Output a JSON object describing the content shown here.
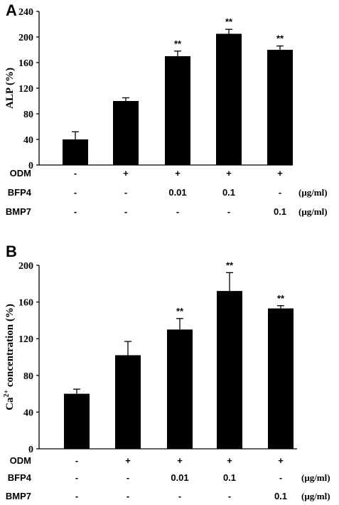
{
  "chart_data": [
    {
      "type": "bar",
      "panel": "A",
      "ylabel": "ALP (%)",
      "ylim": [
        0,
        240
      ],
      "yticks": [
        "0",
        "40",
        "80",
        "120",
        "160",
        "200",
        "240"
      ],
      "categories": [
        "1",
        "2",
        "3",
        "4",
        "5"
      ],
      "values": [
        40,
        100,
        170,
        205,
        180
      ],
      "errors": [
        12,
        5,
        8,
        7,
        6
      ],
      "significance": [
        "",
        "",
        "**",
        "**",
        "**"
      ],
      "conditions": [
        {
          "label": "ODM",
          "values": [
            "-",
            "+",
            "+",
            "+",
            "+"
          ],
          "unit": ""
        },
        {
          "label": "BFP4",
          "values": [
            "-",
            "-",
            "0.01",
            "0.1",
            "-"
          ],
          "unit": "(μg/ml)"
        },
        {
          "label": "BMP7",
          "values": [
            "-",
            "-",
            "-",
            "-",
            "0.1"
          ],
          "unit": "(μg/ml)"
        }
      ]
    },
    {
      "type": "bar",
      "panel": "B",
      "ylabel": "Ca²⁺ concentration (%)",
      "ylim": [
        0,
        200
      ],
      "yticks": [
        "0",
        "40",
        "80",
        "120",
        "160",
        "200"
      ],
      "categories": [
        "1",
        "2",
        "3",
        "4",
        "5"
      ],
      "values": [
        60,
        102,
        130,
        172,
        153
      ],
      "errors": [
        5,
        15,
        12,
        20,
        3
      ],
      "significance": [
        "",
        "",
        "**",
        "**",
        "**"
      ],
      "conditions": [
        {
          "label": "ODM",
          "values": [
            "-",
            "+",
            "+",
            "+",
            "+"
          ],
          "unit": ""
        },
        {
          "label": "BFP4",
          "values": [
            "-",
            "-",
            "0.01",
            "0.1",
            "-"
          ],
          "unit": "(μg/ml)"
        },
        {
          "label": "BMP7",
          "values": [
            "-",
            "-",
            "-",
            "-",
            "0.1"
          ],
          "unit": "(μg/ml)"
        }
      ]
    }
  ]
}
